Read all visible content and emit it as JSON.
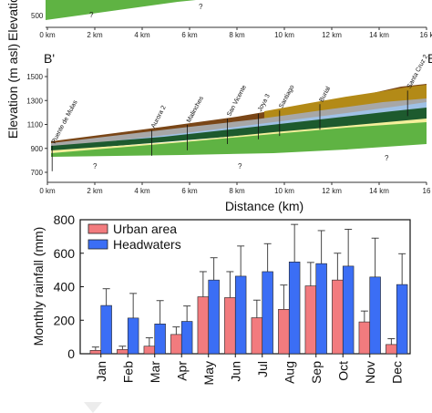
{
  "top_fragment": {
    "ylabel": "Elevation (m a.s",
    "ytick": "500",
    "unknown_mark": "?",
    "xticks": [
      "0 km",
      "2 km",
      "4 km",
      "6 km",
      "8 km",
      "10 km",
      "12 km",
      "14 km",
      "16 k"
    ]
  },
  "section": {
    "left_label": "B'",
    "right_label": "B",
    "ylabel": "Elevation (m asl)",
    "xlabel": "Distance (km)",
    "yticks": [
      "700",
      "900",
      "1100",
      "1300",
      "1500"
    ],
    "xticks": [
      "0 km",
      "2 km",
      "4 km",
      "6 km",
      "8 km",
      "10 km",
      "12 km",
      "14 km",
      "16"
    ],
    "unknown_marks": [
      "?",
      "?",
      "?"
    ],
    "wells": [
      {
        "name": "Puente de Mulas",
        "distance_km": 0.2
      },
      {
        "name": "Aurora 2",
        "distance_km": 4.4
      },
      {
        "name": "Malinches",
        "distance_km": 5.9
      },
      {
        "name": "San Vicente",
        "distance_km": 7.6
      },
      {
        "name": "Joya 3",
        "distance_km": 8.9
      },
      {
        "name": "Santiago",
        "distance_km": 9.8
      },
      {
        "name": "Burial",
        "distance_km": 11.5
      },
      {
        "name": "Santa Cruz 2",
        "distance_km": 15.2
      }
    ],
    "colors": {
      "base": "#5fb343",
      "yellow": "#f4ef9b",
      "dark_green": "#1d5a2e",
      "blue": "#9fc1e6",
      "gray": "#a7a7a7",
      "mustard": "#b38a17",
      "brown": "#7a4617"
    }
  },
  "chart_data": {
    "type": "bar",
    "categories": [
      "Jan",
      "Feb",
      "Mar",
      "Apr",
      "May",
      "Jun",
      "Jul",
      "Aug",
      "Sep",
      "Oct",
      "Nov",
      "Dec"
    ],
    "series": [
      {
        "name": "Urban area",
        "color": "#f27b7e",
        "values": [
          20,
          25,
          45,
          115,
          340,
          335,
          215,
          265,
          405,
          440,
          190,
          55
        ],
        "error_upper": [
          40,
          45,
          95,
          160,
          490,
          490,
          320,
          410,
          545,
          600,
          255,
          90
        ]
      },
      {
        "name": "Headwaters",
        "color": "#3b6ef5",
        "values": [
          288,
          213,
          178,
          193,
          440,
          463,
          490,
          548,
          538,
          523,
          458,
          413
        ],
        "error_upper": [
          388,
          360,
          317,
          285,
          573,
          643,
          657,
          772,
          735,
          743,
          690,
          597
        ]
      }
    ],
    "ylabel": "Monthly rainfall (mm)",
    "xlabel": "",
    "ylim": [
      0,
      800
    ],
    "yticks": [
      "0",
      "200",
      "400",
      "600",
      "800"
    ],
    "legend": "top-left"
  }
}
